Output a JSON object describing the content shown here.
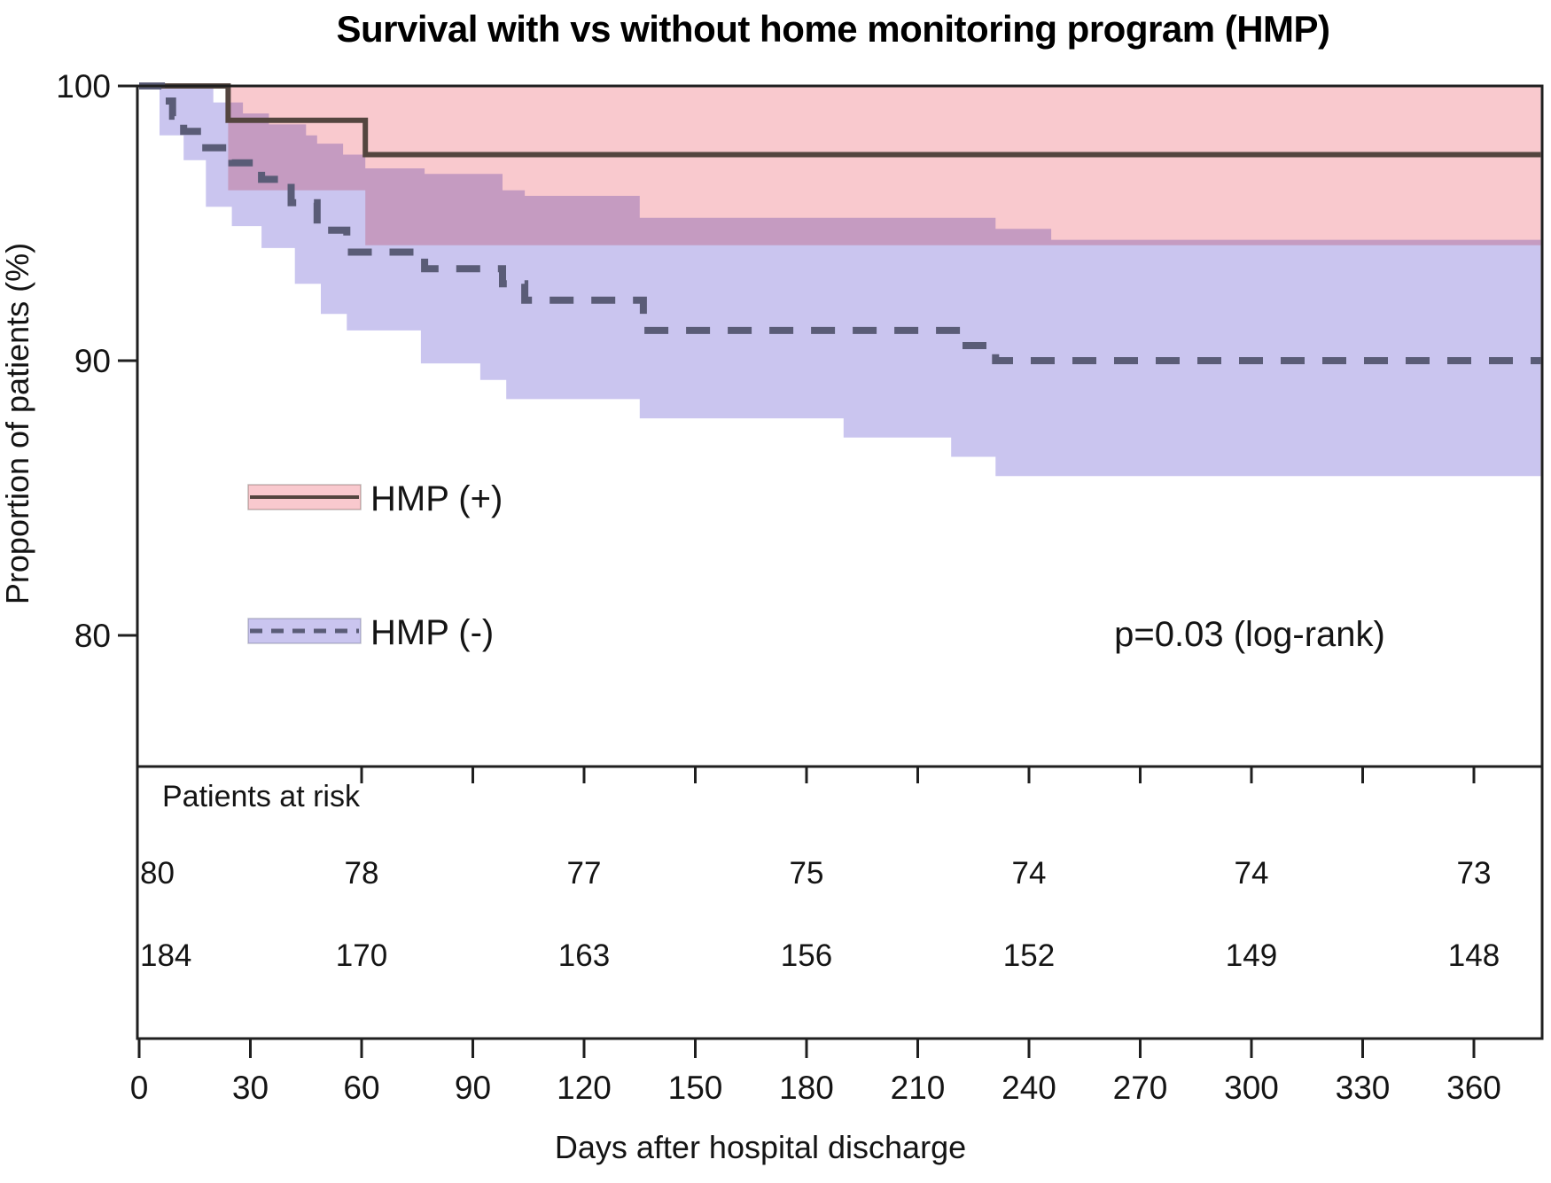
{
  "chart_data": {
    "type": "line",
    "subtype": "kaplan-meier-step",
    "title": "Survival with vs without home monitoring program (HMP)",
    "xlabel": "Days after hospital discharge",
    "ylabel": "Proportion of patients (%)",
    "x_ticks": [
      0,
      30,
      60,
      90,
      120,
      150,
      180,
      210,
      240,
      270,
      300,
      330,
      360
    ],
    "y_ticks": [
      100,
      90,
      80
    ],
    "xlim": [
      0,
      378
    ],
    "ylim": [
      75,
      100.5
    ],
    "grid": false,
    "annotations": {
      "p_text": "p=0.03 (log-rank)",
      "risk_header": "Patients at risk"
    },
    "risk_days": [
      0,
      60,
      120,
      180,
      240,
      300,
      360
    ],
    "series": [
      {
        "name": "HMP (+)",
        "style": "solid",
        "line_color": "#54453f",
        "band_color": "#f9c9ce",
        "line": [
          [
            0,
            100
          ],
          [
            24,
            98.75
          ],
          [
            61,
            97.5
          ]
        ],
        "band_upper": [
          [
            24,
            100
          ]
        ],
        "band_lower": [
          [
            24,
            96.2
          ],
          [
            61,
            94.2
          ]
        ],
        "at_risk": [
          80,
          78,
          77,
          75,
          74,
          74,
          73
        ]
      },
      {
        "name": "HMP (-)",
        "style": "dashed",
        "line_color": "#5a5c77",
        "band_color": "#cac5ef",
        "line": [
          [
            0,
            100
          ],
          [
            6,
            99.45
          ],
          [
            9,
            98.9
          ],
          [
            12,
            98.35
          ],
          [
            17,
            97.75
          ],
          [
            25,
            97.2
          ],
          [
            33,
            96.6
          ],
          [
            41,
            95.75
          ],
          [
            48,
            94.75
          ],
          [
            56,
            93.95
          ],
          [
            77,
            93.35
          ],
          [
            98,
            92.8
          ],
          [
            104,
            92.2
          ],
          [
            136,
            91.1
          ],
          [
            222,
            90.55
          ],
          [
            231,
            90.0
          ]
        ],
        "band_upper": [
          [
            5.5,
            100
          ],
          [
            20,
            99.4
          ],
          [
            28,
            99.0
          ],
          [
            35,
            98.6
          ],
          [
            45,
            98.2
          ],
          [
            48,
            97.9
          ],
          [
            55,
            97.5
          ],
          [
            61,
            97.0
          ],
          [
            77,
            96.8
          ],
          [
            98,
            96.2
          ],
          [
            104,
            96.0
          ],
          [
            135,
            95.2
          ],
          [
            231,
            94.8
          ],
          [
            246,
            94.4
          ]
        ],
        "band_lower": [
          [
            5.5,
            98.2
          ],
          [
            12,
            97.3
          ],
          [
            18,
            95.6
          ],
          [
            25,
            94.9
          ],
          [
            33,
            94.1
          ],
          [
            42,
            92.8
          ],
          [
            49,
            91.7
          ],
          [
            56,
            91.1
          ],
          [
            76,
            89.9
          ],
          [
            92,
            89.3
          ],
          [
            99,
            88.6
          ],
          [
            135,
            87.9
          ],
          [
            190,
            87.2
          ],
          [
            219,
            86.5
          ],
          [
            231,
            85.8
          ]
        ],
        "at_risk": [
          184,
          170,
          163,
          156,
          152,
          149,
          148
        ]
      }
    ]
  }
}
